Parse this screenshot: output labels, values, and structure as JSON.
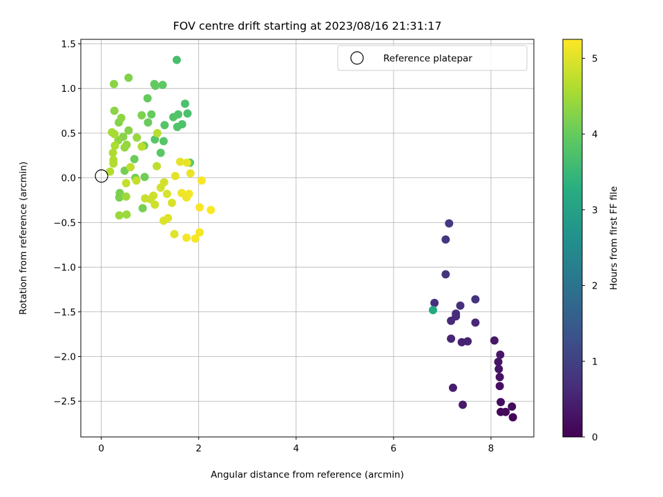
{
  "chart_data": {
    "type": "scatter",
    "title": "FOV centre drift starting at 2023/08/16 21:31:17",
    "xlabel": "Angular distance from reference (arcmin)",
    "ylabel": "Rotation from reference (arcmin)",
    "xlim": [
      -0.42,
      8.88
    ],
    "ylim": [
      -2.9,
      1.55
    ],
    "xticks": [
      0,
      2,
      4,
      6,
      8
    ],
    "yticks": [
      -2.5,
      -2.0,
      -1.5,
      -1.0,
      -0.5,
      0.0,
      0.5,
      1.0,
      1.5
    ],
    "xtick_labels": [
      "0",
      "2",
      "4",
      "6",
      "8"
    ],
    "ytick_labels": [
      "−2.5",
      "−2.0",
      "−1.5",
      "−1.0",
      "−0.5",
      "0.0",
      "0.5",
      "1.0",
      "1.5"
    ],
    "grid": true,
    "legend": {
      "position": "top-right",
      "entries": [
        "Reference platepar"
      ]
    },
    "reference_point": {
      "x": 0,
      "y": 0,
      "label": "Reference platepar"
    },
    "colorbar": {
      "label": "Hours from first FF file",
      "range": [
        0,
        5.25
      ],
      "ticks": [
        0,
        1,
        2,
        3,
        4,
        5
      ],
      "tick_labels": [
        "0",
        "1",
        "2",
        "3",
        "4",
        "5"
      ],
      "colormap": "viridis"
    },
    "points": [
      {
        "x": 8.45,
        "y": -2.68,
        "c": 0.05
      },
      {
        "x": 8.2,
        "y": -2.62,
        "c": 0.1
      },
      {
        "x": 8.3,
        "y": -2.62,
        "c": 0.12
      },
      {
        "x": 8.43,
        "y": -2.56,
        "c": 0.15
      },
      {
        "x": 8.2,
        "y": -2.51,
        "c": 0.18
      },
      {
        "x": 8.18,
        "y": -2.33,
        "c": 0.22
      },
      {
        "x": 8.18,
        "y": -2.23,
        "c": 0.25
      },
      {
        "x": 8.16,
        "y": -2.14,
        "c": 0.28
      },
      {
        "x": 8.15,
        "y": -2.06,
        "c": 0.3
      },
      {
        "x": 8.19,
        "y": -1.98,
        "c": 0.33
      },
      {
        "x": 8.07,
        "y": -1.82,
        "c": 0.36
      },
      {
        "x": 7.42,
        "y": -2.54,
        "c": 0.4
      },
      {
        "x": 7.22,
        "y": -2.35,
        "c": 0.44
      },
      {
        "x": 7.4,
        "y": -1.84,
        "c": 0.5
      },
      {
        "x": 7.52,
        "y": -1.83,
        "c": 0.52
      },
      {
        "x": 7.18,
        "y": -1.8,
        "c": 0.55
      },
      {
        "x": 7.68,
        "y": -1.62,
        "c": 0.58
      },
      {
        "x": 7.18,
        "y": -1.6,
        "c": 0.62
      },
      {
        "x": 7.28,
        "y": -1.55,
        "c": 0.65
      },
      {
        "x": 7.28,
        "y": -1.52,
        "c": 0.68
      },
      {
        "x": 7.37,
        "y": -1.43,
        "c": 0.72
      },
      {
        "x": 6.84,
        "y": -1.4,
        "c": 0.75
      },
      {
        "x": 7.68,
        "y": -1.36,
        "c": 0.78
      },
      {
        "x": 7.07,
        "y": -1.08,
        "c": 0.82
      },
      {
        "x": 7.07,
        "y": -0.69,
        "c": 0.86
      },
      {
        "x": 7.14,
        "y": -0.51,
        "c": 0.9
      },
      {
        "x": 6.81,
        "y": -1.48,
        "c": 3.2
      },
      {
        "x": 1.55,
        "y": 1.32,
        "c": 3.7
      },
      {
        "x": 1.77,
        "y": 0.72,
        "c": 3.72
      },
      {
        "x": 1.72,
        "y": 0.83,
        "c": 3.74
      },
      {
        "x": 1.66,
        "y": 0.6,
        "c": 3.76
      },
      {
        "x": 1.56,
        "y": 0.57,
        "c": 3.78
      },
      {
        "x": 1.58,
        "y": 0.71,
        "c": 3.8
      },
      {
        "x": 1.48,
        "y": 0.68,
        "c": 3.82
      },
      {
        "x": 1.3,
        "y": 0.59,
        "c": 3.84
      },
      {
        "x": 1.28,
        "y": 0.41,
        "c": 3.86
      },
      {
        "x": 1.1,
        "y": 0.43,
        "c": 3.88
      },
      {
        "x": 1.22,
        "y": 0.28,
        "c": 3.9
      },
      {
        "x": 1.82,
        "y": 0.17,
        "c": 3.92
      },
      {
        "x": 1.26,
        "y": 1.04,
        "c": 3.94
      },
      {
        "x": 1.09,
        "y": 1.05,
        "c": 3.96
      },
      {
        "x": 1.11,
        "y": 1.03,
        "c": 3.98
      },
      {
        "x": 0.95,
        "y": 0.89,
        "c": 4.0
      },
      {
        "x": 1.03,
        "y": 0.71,
        "c": 4.02
      },
      {
        "x": 0.96,
        "y": 0.62,
        "c": 4.04
      },
      {
        "x": 0.68,
        "y": 0.21,
        "c": 4.06
      },
      {
        "x": 0.88,
        "y": 0.36,
        "c": 4.08
      },
      {
        "x": 0.89,
        "y": 0.01,
        "c": 4.1
      },
      {
        "x": 0.7,
        "y": 0.0,
        "c": 4.12
      },
      {
        "x": 0.48,
        "y": 0.08,
        "c": 4.14
      },
      {
        "x": 0.85,
        "y": -0.34,
        "c": 4.16
      },
      {
        "x": 0.38,
        "y": -0.17,
        "c": 4.18
      },
      {
        "x": 0.37,
        "y": -0.22,
        "c": 4.2
      },
      {
        "x": 0.83,
        "y": 0.7,
        "c": 4.22
      },
      {
        "x": 0.56,
        "y": 1.12,
        "c": 4.24
      },
      {
        "x": 0.36,
        "y": 0.62,
        "c": 4.26
      },
      {
        "x": 0.56,
        "y": 0.53,
        "c": 4.28
      },
      {
        "x": 0.45,
        "y": 0.46,
        "c": 4.3
      },
      {
        "x": 0.26,
        "y": 1.05,
        "c": 4.32
      },
      {
        "x": 0.27,
        "y": 0.75,
        "c": 4.34
      },
      {
        "x": 0.41,
        "y": 0.67,
        "c": 4.36
      },
      {
        "x": 0.35,
        "y": 0.42,
        "c": 4.38
      },
      {
        "x": 0.52,
        "y": 0.37,
        "c": 4.4
      },
      {
        "x": 0.48,
        "y": 0.34,
        "c": 4.42
      },
      {
        "x": 0.73,
        "y": 0.45,
        "c": 4.44
      },
      {
        "x": 0.37,
        "y": -0.42,
        "c": 4.46
      },
      {
        "x": 0.52,
        "y": -0.41,
        "c": 4.48
      },
      {
        "x": 0.51,
        "y": -0.21,
        "c": 4.5
      },
      {
        "x": 0.22,
        "y": 0.51,
        "c": 4.55
      },
      {
        "x": 0.27,
        "y": 0.49,
        "c": 4.57
      },
      {
        "x": 0.28,
        "y": 0.36,
        "c": 4.59
      },
      {
        "x": 0.24,
        "y": 0.28,
        "c": 4.61
      },
      {
        "x": 0.25,
        "y": 0.2,
        "c": 4.63
      },
      {
        "x": 0.25,
        "y": 0.16,
        "c": 4.65
      },
      {
        "x": 0.18,
        "y": 0.07,
        "c": 4.67
      },
      {
        "x": 1.15,
        "y": 0.5,
        "c": 4.7
      },
      {
        "x": 0.83,
        "y": 0.35,
        "c": 4.72
      },
      {
        "x": 1.14,
        "y": 0.13,
        "c": 4.74
      },
      {
        "x": 0.6,
        "y": 0.12,
        "c": 4.76
      },
      {
        "x": 0.72,
        "y": -0.03,
        "c": 4.78
      },
      {
        "x": 0.51,
        "y": -0.06,
        "c": 4.8
      },
      {
        "x": 0.9,
        "y": -0.23,
        "c": 4.82
      },
      {
        "x": 1.01,
        "y": -0.24,
        "c": 4.84
      },
      {
        "x": 1.07,
        "y": -0.2,
        "c": 4.86
      },
      {
        "x": 1.1,
        "y": -0.3,
        "c": 4.88
      },
      {
        "x": 1.22,
        "y": -0.11,
        "c": 4.9
      },
      {
        "x": 1.29,
        "y": -0.05,
        "c": 4.92
      },
      {
        "x": 1.35,
        "y": -0.18,
        "c": 4.94
      },
      {
        "x": 1.45,
        "y": -0.28,
        "c": 4.96
      },
      {
        "x": 1.28,
        "y": -0.48,
        "c": 4.98
      },
      {
        "x": 1.37,
        "y": -0.45,
        "c": 5.0
      },
      {
        "x": 1.5,
        "y": -0.63,
        "c": 5.02
      },
      {
        "x": 1.52,
        "y": 0.02,
        "c": 5.04
      },
      {
        "x": 1.62,
        "y": 0.18,
        "c": 5.06
      },
      {
        "x": 1.76,
        "y": 0.17,
        "c": 5.08
      },
      {
        "x": 1.83,
        "y": 0.05,
        "c": 5.1
      },
      {
        "x": 1.65,
        "y": -0.17,
        "c": 5.12
      },
      {
        "x": 1.75,
        "y": -0.22,
        "c": 5.14
      },
      {
        "x": 1.8,
        "y": -0.18,
        "c": 5.16
      },
      {
        "x": 1.75,
        "y": -0.67,
        "c": 5.18
      },
      {
        "x": 1.93,
        "y": -0.68,
        "c": 5.19
      },
      {
        "x": 2.02,
        "y": -0.61,
        "c": 5.2
      },
      {
        "x": 2.02,
        "y": -0.33,
        "c": 5.21
      },
      {
        "x": 2.06,
        "y": -0.03,
        "c": 5.22
      },
      {
        "x": 2.25,
        "y": -0.36,
        "c": 5.23
      }
    ]
  }
}
